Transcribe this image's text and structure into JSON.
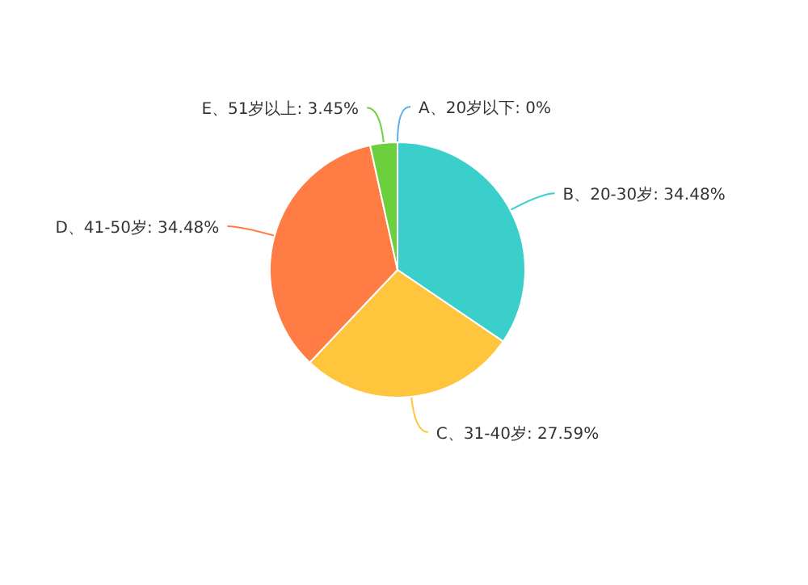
{
  "chart_data": {
    "type": "pie",
    "categories": [
      "A、20岁以下: 0%",
      "B、20-30岁: 34.48%",
      "C、31-40岁: 27.59%",
      "D、41-50岁: 34.48%",
      "E、51岁以上: 3.45%"
    ],
    "values": [
      0,
      34.48,
      27.59,
      34.48,
      3.45
    ],
    "colors": [
      "#5ab1ef",
      "#3acfcb",
      "#ffc53d",
      "#ff7c45",
      "#6ccf3d"
    ]
  }
}
